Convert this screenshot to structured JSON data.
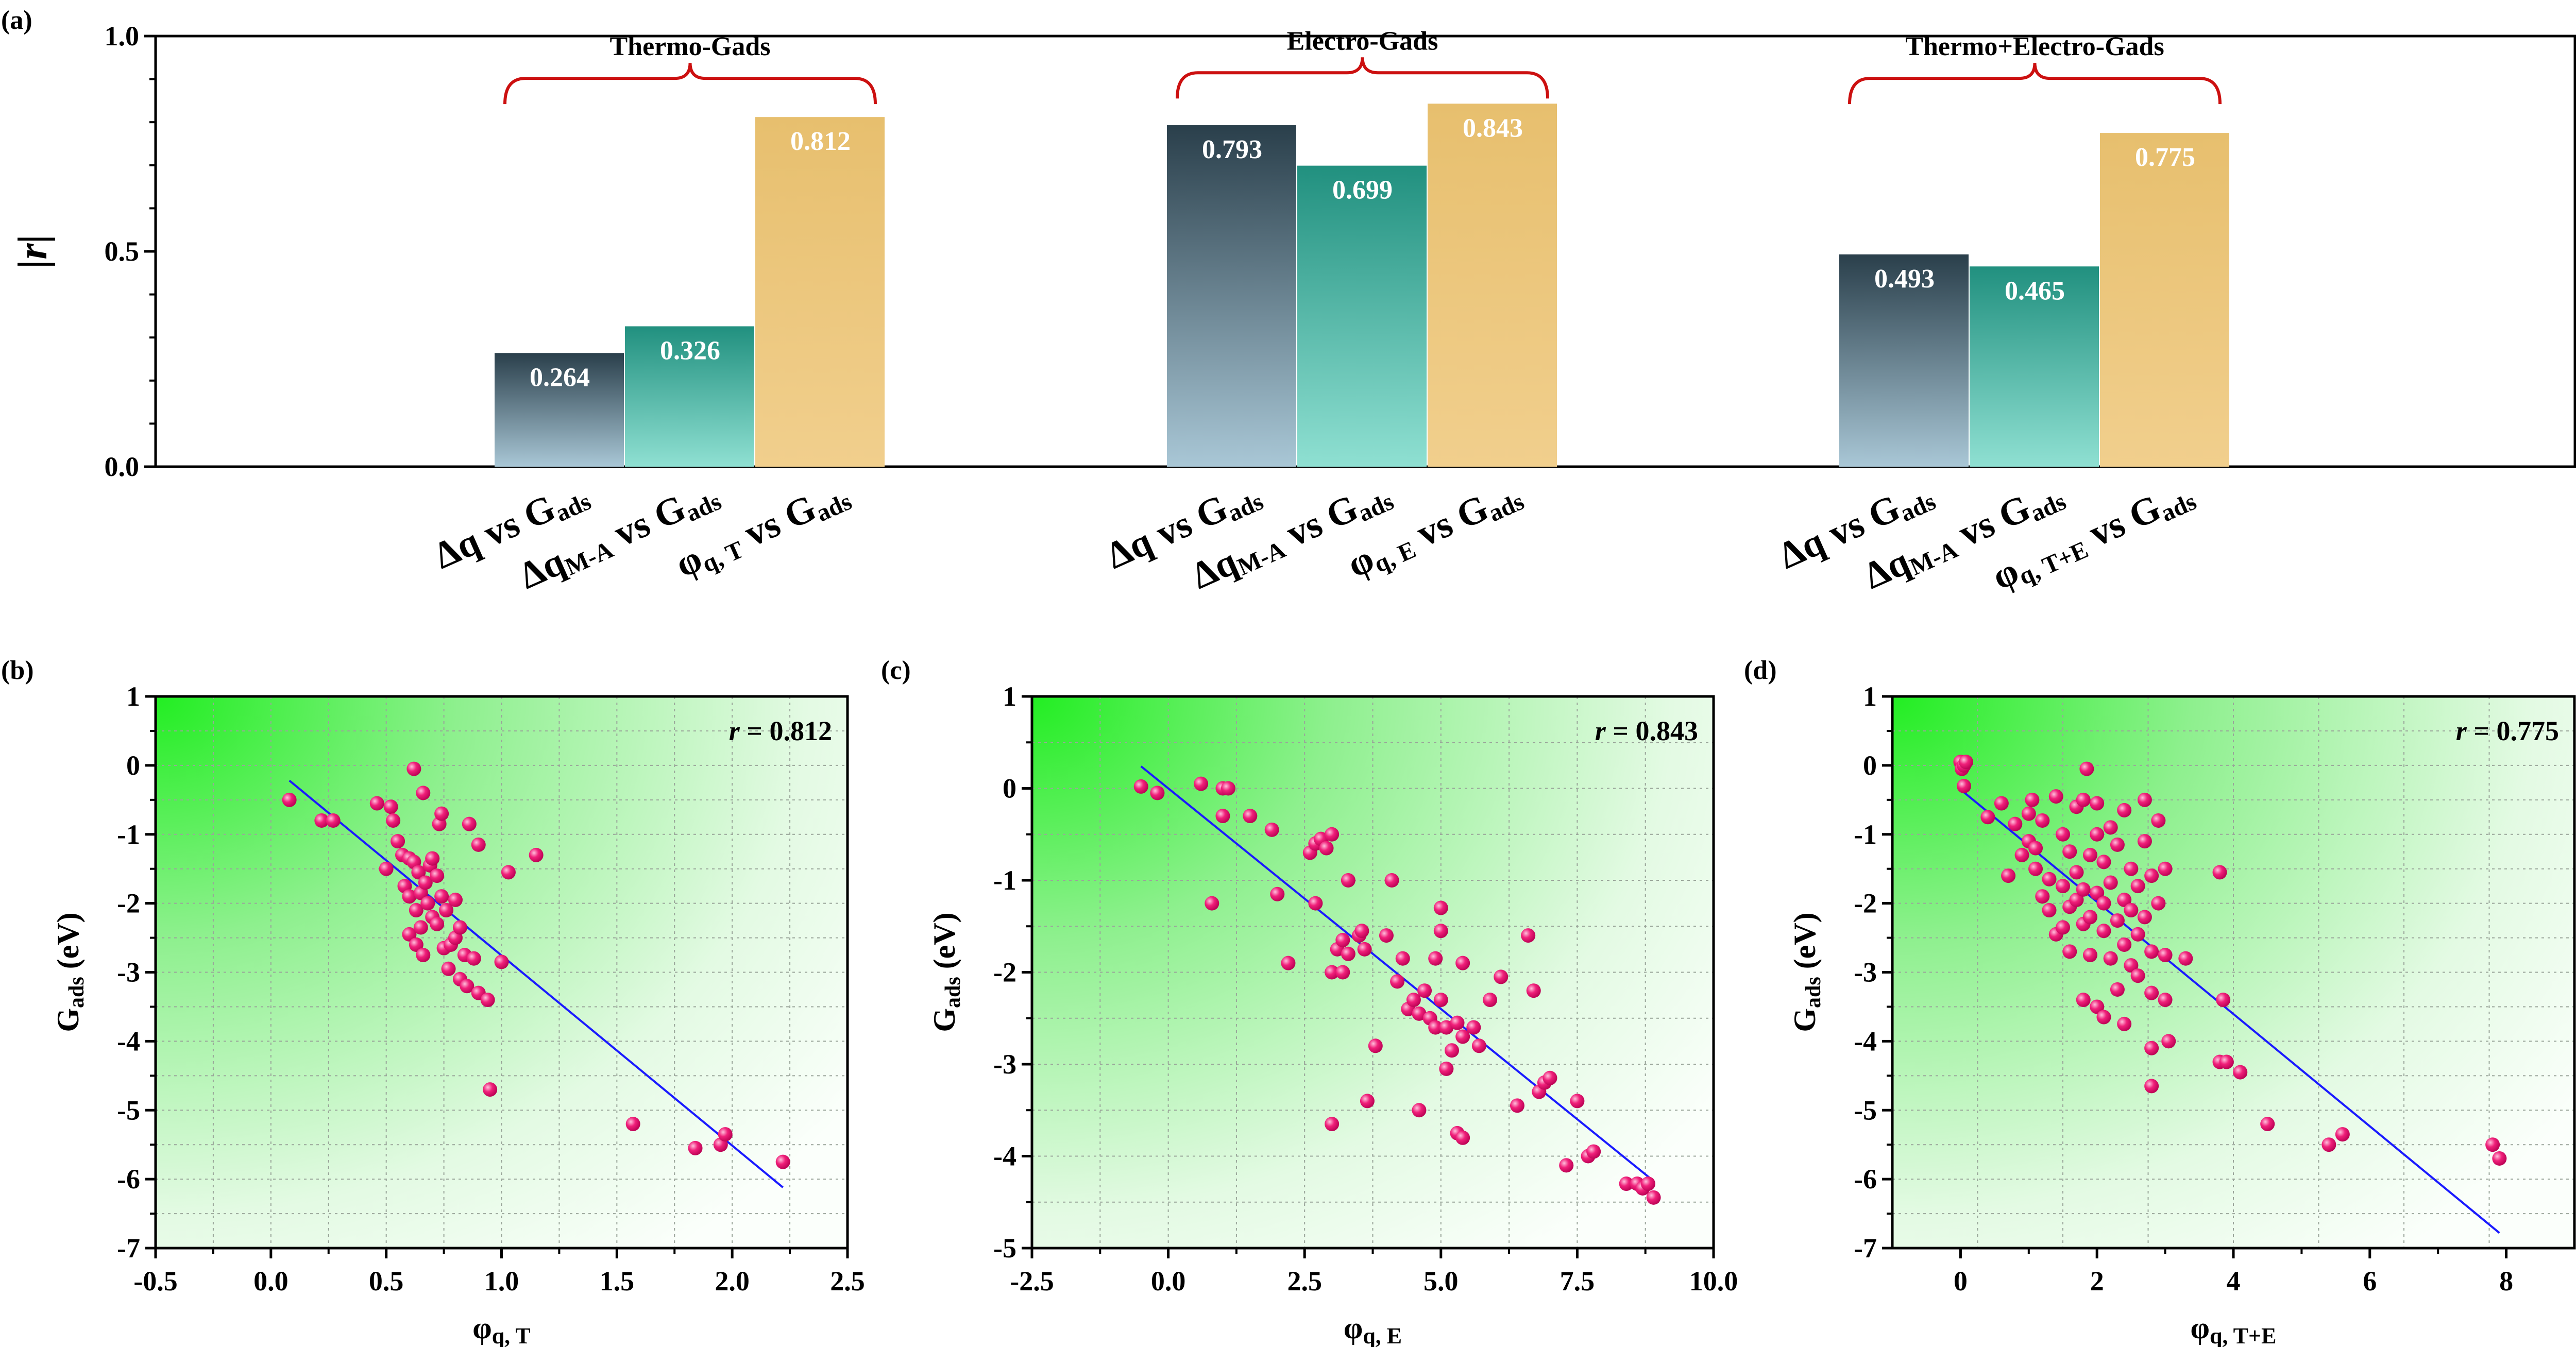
{
  "chart_data": [
    {
      "panel": "(a)",
      "type": "bar",
      "ylabel": "|r|",
      "ylim": [
        0,
        1.0
      ],
      "yticks": [
        "0.0",
        "0.5",
        "1.0"
      ],
      "groups": [
        {
          "title": "Thermo-Gads",
          "bars": [
            {
              "label": "Δq vs Gads",
              "value": 0.264,
              "value_label": "0.264",
              "color": "#2f4c59"
            },
            {
              "label": "ΔqM-A vs Gads",
              "value": 0.326,
              "value_label": "0.326",
              "color": "#2a9a8c"
            },
            {
              "label": "φq, T vs Gads",
              "value": 0.812,
              "value_label": "0.812",
              "color": "#e8c070"
            }
          ]
        },
        {
          "title": "Electro-Gads",
          "bars": [
            {
              "label": "Δq vs Gads",
              "value": 0.793,
              "value_label": "0.793",
              "color": "#2f4c59"
            },
            {
              "label": "ΔqM-A vs Gads",
              "value": 0.699,
              "value_label": "0.699",
              "color": "#2a9a8c"
            },
            {
              "label": "φq, E vs Gads",
              "value": 0.843,
              "value_label": "0.843",
              "color": "#e8c070"
            }
          ]
        },
        {
          "title": "Thermo+Electro-Gads",
          "bars": [
            {
              "label": "Δq vs Gads",
              "value": 0.493,
              "value_label": "0.493",
              "color": "#2f4c59"
            },
            {
              "label": "ΔqM-A vs Gads",
              "value": 0.465,
              "value_label": "0.465",
              "color": "#2a9a8c"
            },
            {
              "label": "φq, T+E vs Gads",
              "value": 0.775,
              "value_label": "0.775",
              "color": "#e8c070"
            }
          ]
        }
      ]
    },
    {
      "panel": "(b)",
      "type": "scatter",
      "xlabel": "φq, T",
      "ylabel": "Gads (eV)",
      "xlim": [
        -0.5,
        2.5
      ],
      "ylim": [
        -7,
        1
      ],
      "xticks": [
        -0.5,
        0.0,
        0.5,
        1.0,
        1.5,
        2.0,
        2.5
      ],
      "xtick_labels": [
        "-0.5",
        "0.0",
        "0.5",
        "1.0",
        "1.5",
        "2.0",
        "2.5"
      ],
      "yticks": [
        1,
        0,
        -1,
        -2,
        -3,
        -4,
        -5,
        -6,
        -7
      ],
      "ytick_labels": [
        "1",
        "0",
        "-1",
        "-2",
        "-3",
        "-4",
        "-5",
        "-6",
        "-7"
      ],
      "annotation": "r = 0.812",
      "fit": {
        "x": [
          0.08,
          2.22
        ],
        "y": [
          -0.22,
          -6.12
        ]
      },
      "points": [
        [
          0.08,
          -0.5
        ],
        [
          0.22,
          -0.8
        ],
        [
          0.27,
          -0.8
        ],
        [
          0.46,
          -0.55
        ],
        [
          0.5,
          -1.5
        ],
        [
          0.52,
          -0.6
        ],
        [
          0.53,
          -0.8
        ],
        [
          0.55,
          -1.1
        ],
        [
          0.57,
          -1.3
        ],
        [
          0.58,
          -1.75
        ],
        [
          0.6,
          -1.35
        ],
        [
          0.6,
          -1.9
        ],
        [
          0.6,
          -2.45
        ],
        [
          0.62,
          -0.05
        ],
        [
          0.62,
          -1.4
        ],
        [
          0.63,
          -2.1
        ],
        [
          0.63,
          -2.6
        ],
        [
          0.64,
          -1.55
        ],
        [
          0.65,
          -1.85
        ],
        [
          0.65,
          -2.35
        ],
        [
          0.66,
          -0.4
        ],
        [
          0.66,
          -2.75
        ],
        [
          0.67,
          -1.7
        ],
        [
          0.68,
          -2.0
        ],
        [
          0.69,
          -1.45
        ],
        [
          0.7,
          -1.35
        ],
        [
          0.7,
          -2.2
        ],
        [
          0.72,
          -1.6
        ],
        [
          0.72,
          -2.3
        ],
        [
          0.73,
          -0.85
        ],
        [
          0.74,
          -0.7
        ],
        [
          0.74,
          -1.9
        ],
        [
          0.75,
          -2.65
        ],
        [
          0.76,
          -2.1
        ],
        [
          0.77,
          -2.95
        ],
        [
          0.78,
          -2.6
        ],
        [
          0.8,
          -1.95
        ],
        [
          0.8,
          -2.5
        ],
        [
          0.82,
          -2.35
        ],
        [
          0.82,
          -3.1
        ],
        [
          0.84,
          -2.75
        ],
        [
          0.85,
          -3.2
        ],
        [
          0.86,
          -0.85
        ],
        [
          0.88,
          -2.8
        ],
        [
          0.9,
          -1.15
        ],
        [
          0.9,
          -3.3
        ],
        [
          0.94,
          -3.4
        ],
        [
          0.95,
          -4.7
        ],
        [
          1.0,
          -2.85
        ],
        [
          1.03,
          -1.55
        ],
        [
          1.15,
          -1.3
        ],
        [
          1.57,
          -5.2
        ],
        [
          1.84,
          -5.55
        ],
        [
          1.95,
          -5.5
        ],
        [
          1.97,
          -5.35
        ],
        [
          2.22,
          -5.75
        ]
      ]
    },
    {
      "panel": "(c)",
      "type": "scatter",
      "xlabel": "φq, E",
      "ylabel": "Gads (eV)",
      "xlim": [
        -2.5,
        10.0
      ],
      "ylim": [
        -5,
        1
      ],
      "xticks": [
        -2.5,
        0.0,
        2.5,
        5.0,
        7.5,
        10.0
      ],
      "xtick_labels": [
        "-2.5",
        "0.0",
        "2.5",
        "5.0",
        "7.5",
        "10.0"
      ],
      "yticks": [
        1,
        0,
        -1,
        -2,
        -3,
        -4,
        -5
      ],
      "ytick_labels": [
        "1",
        "0",
        "-1",
        "-2",
        "-3",
        "-4",
        "-5"
      ],
      "annotation": "r = 0.843",
      "fit": {
        "x": [
          -0.5,
          8.9
        ],
        "y": [
          0.24,
          -4.27
        ]
      },
      "points": [
        [
          -0.5,
          0.02
        ],
        [
          -0.2,
          -0.05
        ],
        [
          0.6,
          0.05
        ],
        [
          0.8,
          -1.25
        ],
        [
          1.0,
          0.0
        ],
        [
          1.1,
          0.0
        ],
        [
          1.0,
          -0.3
        ],
        [
          1.5,
          -0.3
        ],
        [
          1.9,
          -0.45
        ],
        [
          2.0,
          -1.15
        ],
        [
          2.2,
          -1.9
        ],
        [
          2.6,
          -0.7
        ],
        [
          2.7,
          -1.25
        ],
        [
          2.7,
          -0.6
        ],
        [
          2.8,
          -0.55
        ],
        [
          2.9,
          -0.65
        ],
        [
          3.0,
          -0.5
        ],
        [
          3.0,
          -2.0
        ],
        [
          3.0,
          -3.65
        ],
        [
          3.1,
          -1.75
        ],
        [
          3.2,
          -1.65
        ],
        [
          3.2,
          -2.0
        ],
        [
          3.3,
          -1.8
        ],
        [
          3.3,
          -1.0
        ],
        [
          3.5,
          -1.6
        ],
        [
          3.55,
          -1.55
        ],
        [
          3.6,
          -1.75
        ],
        [
          3.65,
          -3.4
        ],
        [
          3.8,
          -2.8
        ],
        [
          4.0,
          -1.6
        ],
        [
          4.1,
          -1.0
        ],
        [
          4.2,
          -2.1
        ],
        [
          4.3,
          -1.85
        ],
        [
          4.4,
          -2.4
        ],
        [
          4.5,
          -2.3
        ],
        [
          4.6,
          -2.45
        ],
        [
          4.6,
          -3.5
        ],
        [
          4.7,
          -2.2
        ],
        [
          4.8,
          -2.5
        ],
        [
          4.9,
          -1.85
        ],
        [
          4.9,
          -2.6
        ],
        [
          5.0,
          -1.3
        ],
        [
          5.0,
          -1.55
        ],
        [
          5.0,
          -2.3
        ],
        [
          5.1,
          -2.6
        ],
        [
          5.1,
          -3.05
        ],
        [
          5.2,
          -2.85
        ],
        [
          5.3,
          -2.55
        ],
        [
          5.3,
          -3.75
        ],
        [
          5.4,
          -1.9
        ],
        [
          5.4,
          -2.7
        ],
        [
          5.4,
          -3.8
        ],
        [
          5.6,
          -2.6
        ],
        [
          5.7,
          -2.8
        ],
        [
          5.9,
          -2.3
        ],
        [
          6.1,
          -2.05
        ],
        [
          6.4,
          -3.45
        ],
        [
          6.6,
          -1.6
        ],
        [
          6.7,
          -2.2
        ],
        [
          6.8,
          -3.3
        ],
        [
          6.9,
          -3.2
        ],
        [
          7.0,
          -3.15
        ],
        [
          7.3,
          -4.1
        ],
        [
          7.5,
          -3.4
        ],
        [
          7.7,
          -4.0
        ],
        [
          7.8,
          -3.95
        ],
        [
          8.4,
          -4.3
        ],
        [
          8.6,
          -4.3
        ],
        [
          8.7,
          -4.35
        ],
        [
          8.8,
          -4.3
        ],
        [
          8.9,
          -4.45
        ]
      ]
    },
    {
      "panel": "(d)",
      "type": "scatter",
      "xlabel": "φq, T+E",
      "ylabel": "Gads (eV)",
      "xlim": [
        -1,
        9
      ],
      "ylim": [
        -7,
        1
      ],
      "xticks": [
        0,
        2,
        4,
        6,
        8
      ],
      "xtick_labels": [
        "0",
        "2",
        "4",
        "6",
        "8"
      ],
      "yticks": [
        1,
        0,
        -1,
        -2,
        -3,
        -4,
        -5,
        -6,
        -7
      ],
      "ytick_labels": [
        "1",
        "0",
        "-1",
        "-2",
        "-3",
        "-4",
        "-5",
        "-6",
        "-7"
      ],
      "annotation": "r = 0.775",
      "fit": {
        "x": [
          0.0,
          7.9
        ],
        "y": [
          -0.35,
          -6.78
        ]
      },
      "points": [
        [
          0.0,
          0.05
        ],
        [
          0.02,
          -0.05
        ],
        [
          0.05,
          0.0
        ],
        [
          0.08,
          0.05
        ],
        [
          0.05,
          -0.3
        ],
        [
          0.4,
          -0.75
        ],
        [
          0.6,
          -0.55
        ],
        [
          0.7,
          -1.6
        ],
        [
          0.8,
          -0.85
        ],
        [
          0.9,
          -1.3
        ],
        [
          1.0,
          -0.7
        ],
        [
          1.0,
          -1.1
        ],
        [
          1.05,
          -0.5
        ],
        [
          1.1,
          -1.2
        ],
        [
          1.1,
          -1.5
        ],
        [
          1.2,
          -1.9
        ],
        [
          1.2,
          -0.8
        ],
        [
          1.3,
          -2.1
        ],
        [
          1.3,
          -1.65
        ],
        [
          1.4,
          -0.45
        ],
        [
          1.4,
          -2.45
        ],
        [
          1.5,
          -1.0
        ],
        [
          1.5,
          -1.75
        ],
        [
          1.5,
          -2.35
        ],
        [
          1.6,
          -1.25
        ],
        [
          1.6,
          -2.05
        ],
        [
          1.6,
          -2.7
        ],
        [
          1.7,
          -0.6
        ],
        [
          1.7,
          -1.55
        ],
        [
          1.7,
          -1.95
        ],
        [
          1.8,
          -0.5
        ],
        [
          1.8,
          -1.8
        ],
        [
          1.8,
          -2.3
        ],
        [
          1.8,
          -3.4
        ],
        [
          1.85,
          -0.05
        ],
        [
          1.9,
          -1.3
        ],
        [
          1.9,
          -2.2
        ],
        [
          1.9,
          -2.75
        ],
        [
          2.0,
          -0.55
        ],
        [
          2.0,
          -1.0
        ],
        [
          2.0,
          -1.85
        ],
        [
          2.0,
          -3.5
        ],
        [
          2.1,
          -1.4
        ],
        [
          2.1,
          -2.0
        ],
        [
          2.1,
          -2.4
        ],
        [
          2.1,
          -3.65
        ],
        [
          2.2,
          -0.9
        ],
        [
          2.2,
          -1.7
        ],
        [
          2.2,
          -2.8
        ],
        [
          2.3,
          -1.15
        ],
        [
          2.3,
          -2.25
        ],
        [
          2.3,
          -3.25
        ],
        [
          2.4,
          -0.65
        ],
        [
          2.4,
          -1.95
        ],
        [
          2.4,
          -2.6
        ],
        [
          2.4,
          -3.75
        ],
        [
          2.5,
          -1.5
        ],
        [
          2.5,
          -2.1
        ],
        [
          2.5,
          -2.9
        ],
        [
          2.6,
          -1.75
        ],
        [
          2.6,
          -2.45
        ],
        [
          2.6,
          -3.05
        ],
        [
          2.7,
          -0.5
        ],
        [
          2.7,
          -1.1
        ],
        [
          2.7,
          -2.2
        ],
        [
          2.8,
          -1.6
        ],
        [
          2.8,
          -2.7
        ],
        [
          2.8,
          -3.3
        ],
        [
          2.8,
          -4.1
        ],
        [
          2.8,
          -4.65
        ],
        [
          2.9,
          -0.8
        ],
        [
          2.9,
          -2.0
        ],
        [
          3.0,
          -1.5
        ],
        [
          3.0,
          -2.75
        ],
        [
          3.0,
          -3.4
        ],
        [
          3.05,
          -4.0
        ],
        [
          3.3,
          -2.8
        ],
        [
          3.8,
          -1.55
        ],
        [
          3.85,
          -3.4
        ],
        [
          3.8,
          -4.3
        ],
        [
          3.9,
          -4.3
        ],
        [
          4.1,
          -4.45
        ],
        [
          4.5,
          -5.2
        ],
        [
          5.4,
          -5.5
        ],
        [
          5.6,
          -5.35
        ],
        [
          7.8,
          -5.5
        ],
        [
          7.9,
          -5.7
        ]
      ]
    }
  ]
}
